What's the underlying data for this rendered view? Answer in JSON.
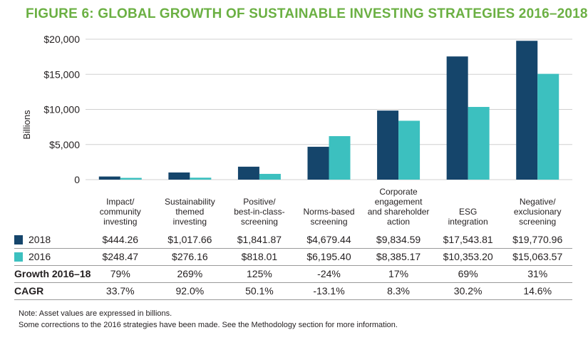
{
  "title": "FIGURE 6: GLOBAL GROWTH OF SUSTAINABLE INVESTING STRATEGIES 2016–2018",
  "colors": {
    "s2018": "#15456b",
    "s2016": "#3cc0bf",
    "title": "#6bb043",
    "grid": "#d0d0d0"
  },
  "chart_data": {
    "type": "bar",
    "title": "FIGURE 6: GLOBAL GROWTH OF SUSTAINABLE INVESTING STRATEGIES 2016–2018",
    "ylabel": "Billions",
    "ylim": [
      0,
      20000
    ],
    "yticks": [
      0,
      5000,
      10000,
      15000,
      20000
    ],
    "ytick_labels": [
      "0",
      "$5,000",
      "$10,000",
      "$15,000",
      "$20,000"
    ],
    "grid": true,
    "categories": [
      "Impact/ community investing",
      "Sustainability themed investing",
      "Positive/ best-in-class-screening",
      "Norms-based screening",
      "Corporate engagement and shareholder action",
      "ESG integration",
      "Negative/ exclusionary screening"
    ],
    "series": [
      {
        "name": "2018",
        "values": [
          444.26,
          1017.66,
          1841.87,
          4679.44,
          9834.59,
          17543.81,
          19770.96
        ]
      },
      {
        "name": "2016",
        "values": [
          248.47,
          276.16,
          818.01,
          6195.4,
          8385.17,
          10353.2,
          15063.57
        ]
      }
    ]
  },
  "category_lines": [
    [
      "Impact/",
      "community",
      "investing"
    ],
    [
      "Sustainability",
      "themed",
      "investing"
    ],
    [
      "Positive/",
      "best-in-class-",
      "screening"
    ],
    [
      "Norms-based",
      "screening"
    ],
    [
      "Corporate",
      "engagement",
      "and shareholder",
      "action"
    ],
    [
      "ESG",
      "integration"
    ],
    [
      "Negative/",
      "exclusionary",
      "screening"
    ]
  ],
  "table": {
    "rows": [
      {
        "label": "2018",
        "cells": [
          "$444.26",
          "$1,017.66",
          "$1,841.87",
          "$4,679.44",
          "$9,834.59",
          "$17,543.81",
          "$19,770.96"
        ]
      },
      {
        "label": "2016",
        "cells": [
          "$248.47",
          "$276.16",
          "$818.01",
          "$6,195.40",
          "$8,385.17",
          "$10,353.20",
          "$15,063.57"
        ]
      },
      {
        "label": "Growth 2016–18",
        "cells": [
          "79%",
          "269%",
          "125%",
          "-24%",
          "17%",
          "69%",
          "31%"
        ]
      },
      {
        "label": "CAGR",
        "cells": [
          "33.7%",
          "92.0%",
          "50.1%",
          "-13.1%",
          "8.3%",
          "30.2%",
          "14.6%"
        ]
      }
    ]
  },
  "notes": {
    "line1": "Note: Asset values are expressed in billions.",
    "line2": "Some corrections to the 2016 strategies have been made. See the Methodology section for more information."
  }
}
